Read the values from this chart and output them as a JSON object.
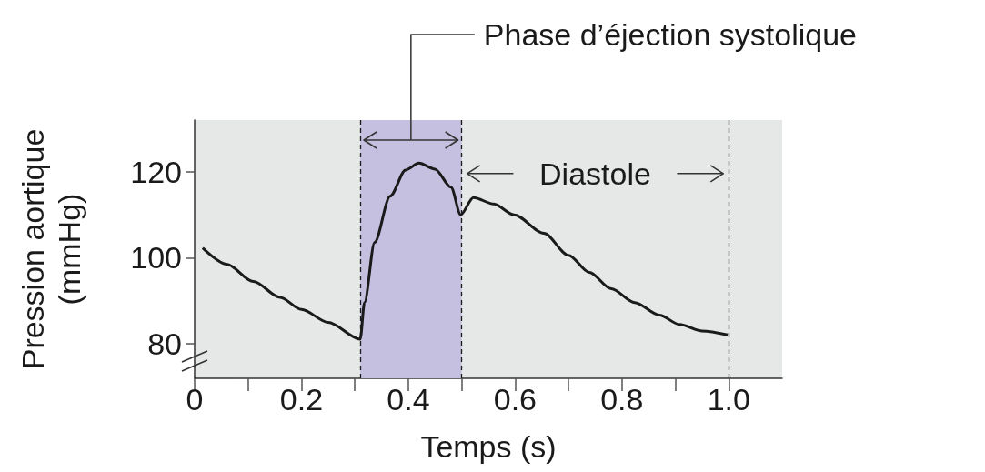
{
  "chart_data": {
    "type": "line",
    "xlabel": "Temps (s)",
    "ylabel": "Pression aortique (mmHg)",
    "x": [
      0.015,
      0.06,
      0.11,
      0.16,
      0.2,
      0.25,
      0.31,
      0.318,
      0.337,
      0.366,
      0.395,
      0.42,
      0.45,
      0.48,
      0.498,
      0.522,
      0.56,
      0.598,
      0.654,
      0.7,
      0.739,
      0.78,
      0.824,
      0.87,
      0.908,
      0.95,
      0.998
    ],
    "series": [
      {
        "color": "#1a1a1a",
        "values": [
          102.3,
          98.5,
          94.5,
          90.8,
          88,
          85,
          81.1,
          89.6,
          103.6,
          114.3,
          120.4,
          122,
          120.6,
          116.4,
          110,
          114,
          112.5,
          110,
          105.7,
          100.6,
          96.6,
          92.8,
          89.6,
          86.7,
          84.5,
          83,
          82.1
        ]
      }
    ],
    "xlim": [
      0,
      1.1
    ],
    "xticks": [
      0,
      {
        "value": 0.1,
        "label": null
      },
      0.2,
      {
        "value": 0.3,
        "label": null
      },
      0.4,
      {
        "value": 0.5,
        "label": null
      },
      0.6,
      {
        "value": 0.7,
        "label": null
      },
      0.8,
      {
        "value": 0.9,
        "label": null
      },
      {
        "value": 1,
        "label": "1.0"
      }
    ],
    "ylim": [
      72,
      132
    ],
    "yticks": [
      80,
      100,
      120
    ],
    "bands": [
      {
        "axis": "x",
        "from": 0.31,
        "to": 0.5,
        "label": "Phase d’éjection systolique",
        "color": "#c5c0e0"
      }
    ],
    "ref_lines": [
      {
        "axis": "x",
        "value": 0.31,
        "color": "#1a1a1a",
        "line_style": "dashed"
      },
      {
        "axis": "x",
        "value": 0.5,
        "color": "#1a1a1a",
        "line_style": "dashed"
      },
      {
        "axis": "x",
        "value": 1,
        "color": "#1a1a1a",
        "line_style": "dashed"
      }
    ],
    "annotations": [
      "Diastole"
    ],
    "grid": false
  }
}
